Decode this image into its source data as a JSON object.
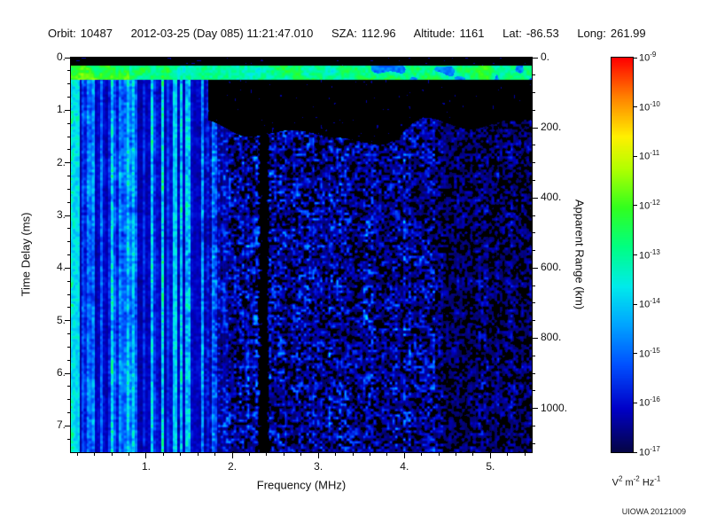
{
  "header": {
    "items": [
      {
        "label": "Orbit:",
        "value": "10487"
      },
      {
        "label": "",
        "value": "2012-03-25 (Day 085) 11:21:47.010"
      },
      {
        "label": "SZA:",
        "value": "112.96"
      },
      {
        "label": "Altitude:",
        "value": "1161"
      },
      {
        "label": "Lat:",
        "value": "-86.53"
      },
      {
        "label": "Long:",
        "value": "261.99"
      }
    ]
  },
  "credit": "UIOWA 20121009",
  "chart_data": {
    "type": "heatmap",
    "xlabel": "Frequency (MHz)",
    "ylabel_left": "Time Delay (ms)",
    "ylabel_right": "Apparent Range (km)",
    "x_axis": {
      "min": 0.125,
      "max": 5.48,
      "minor_step": 0.2,
      "ticks": [
        {
          "v": 1,
          "label": "1."
        },
        {
          "v": 2,
          "label": "2."
        },
        {
          "v": 3,
          "label": "3."
        },
        {
          "v": 4,
          "label": "4."
        },
        {
          "v": 5,
          "label": "5."
        }
      ]
    },
    "y_axis_left": {
      "min": 0,
      "max": 7.5,
      "minor_step": 0.25,
      "ticks": [
        {
          "v": 0,
          "label": "0."
        },
        {
          "v": 1,
          "label": "1."
        },
        {
          "v": 2,
          "label": "2."
        },
        {
          "v": 3,
          "label": "3."
        },
        {
          "v": 4,
          "label": "4."
        },
        {
          "v": 5,
          "label": "5."
        },
        {
          "v": 6,
          "label": "6."
        },
        {
          "v": 7,
          "label": "7."
        }
      ]
    },
    "y_axis_right": {
      "min": 0,
      "max": 1125,
      "minor_step": 50,
      "ticks": [
        {
          "v": 0,
          "label": "0."
        },
        {
          "v": 200,
          "label": "200."
        },
        {
          "v": 400,
          "label": "400."
        },
        {
          "v": 600,
          "label": "600."
        },
        {
          "v": 800,
          "label": "800."
        },
        {
          "v": 1000,
          "label": "1000."
        }
      ]
    },
    "colorbar": {
      "tick_exponents": [
        -9,
        -10,
        -11,
        -12,
        -13,
        -14,
        -15,
        -16,
        -17
      ],
      "units_parts": [
        [
          "V",
          "2"
        ],
        [
          "m",
          "-2"
        ],
        [
          "Hz",
          "-1"
        ]
      ],
      "colormap": [
        [
          0.0,
          [
            5,
            5,
            70
          ]
        ],
        [
          0.11,
          [
            0,
            0,
            200
          ]
        ],
        [
          0.22,
          [
            0,
            80,
            255
          ]
        ],
        [
          0.33,
          [
            0,
            170,
            255
          ]
        ],
        [
          0.42,
          [
            0,
            235,
            235
          ]
        ],
        [
          0.52,
          [
            0,
            255,
            130
          ]
        ],
        [
          0.62,
          [
            50,
            255,
            30
          ]
        ],
        [
          0.72,
          [
            180,
            255,
            0
          ]
        ],
        [
          0.8,
          [
            255,
            240,
            0
          ]
        ],
        [
          0.9,
          [
            255,
            130,
            0
          ]
        ],
        [
          1.0,
          [
            255,
            0,
            0
          ]
        ]
      ]
    },
    "features": {
      "seed": 20121009,
      "surface_echo_band_ms": [
        0.14,
        0.42
      ],
      "left_stripe_max_mhz": 1.6,
      "stripe_blend_mhz": [
        1.6,
        2.0
      ],
      "bright_edge_max_mhz": 0.22,
      "harmonic_line_mhz": 1.33,
      "dark_column_mhz": 2.36,
      "dark_column_halfwidth_mhz": 0.07,
      "upper_right_black_from_mhz": 1.72,
      "upper_right_black_depth_ms": 1.0,
      "right_dim_from_mhz": 4.35
    }
  }
}
